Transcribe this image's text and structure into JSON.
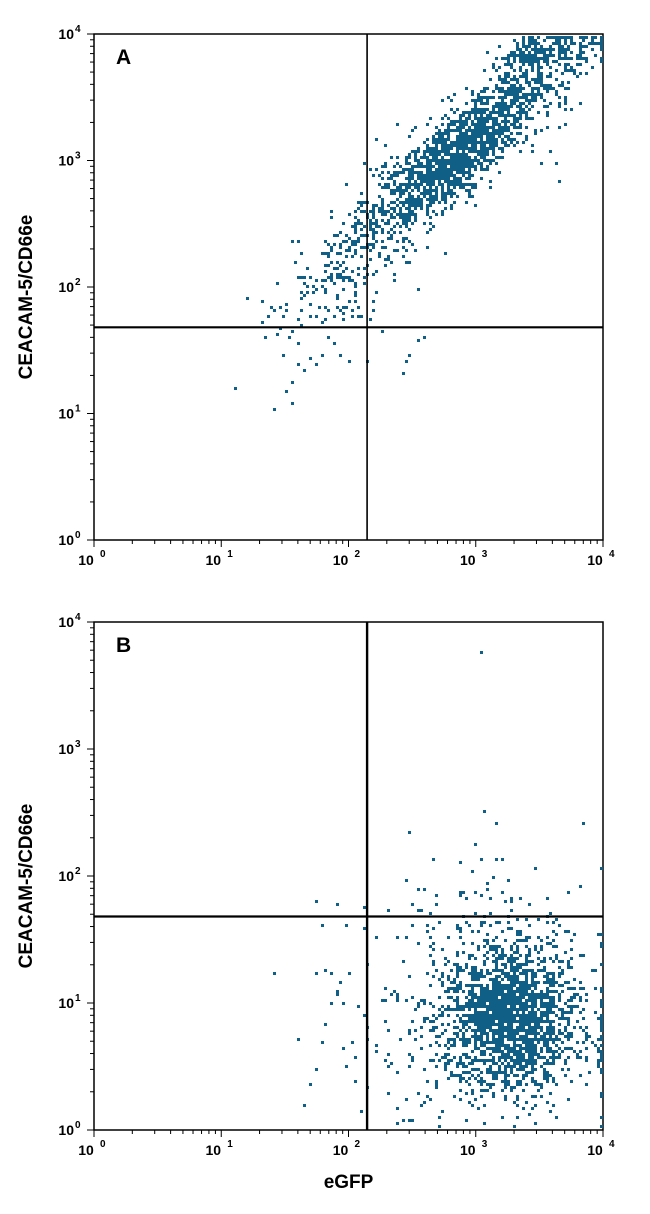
{
  "chart_data": [
    {
      "type": "scatter",
      "panel_label": "A",
      "xlabel": "",
      "ylabel": "CEACAM-5/CD66e",
      "xscale": "log",
      "yscale": "log",
      "xlim": [
        1,
        10000
      ],
      "ylim": [
        1,
        10000
      ],
      "x_ticks": [
        "10",
        "10",
        "10",
        "10",
        "10"
      ],
      "x_tick_exps": [
        "0",
        "1",
        "2",
        "3",
        "4"
      ],
      "y_ticks": [
        "10",
        "10",
        "10",
        "10",
        "10"
      ],
      "y_tick_exps": [
        "0",
        "1",
        "2",
        "3",
        "4"
      ],
      "quadrant_x": 140,
      "quadrant_y": 48,
      "point_color": "#0f5f86",
      "clusters": [
        {
          "center": [
            700,
            1200
          ],
          "spread_log": [
            0.42,
            0.38
          ],
          "correlation": 0.88,
          "count": 1700
        },
        {
          "center": [
            3500,
            7500
          ],
          "spread_log": [
            0.2,
            0.07
          ],
          "correlation": 0.3,
          "count": 220
        },
        {
          "center": [
            90,
            120
          ],
          "spread_log": [
            0.28,
            0.25
          ],
          "correlation": 0.5,
          "count": 140
        }
      ],
      "points": [
        [
          25,
          10.8
        ],
        [
          32,
          15
        ],
        [
          35,
          12.5
        ],
        [
          36,
          18
        ],
        [
          40,
          25
        ],
        [
          45,
          22
        ],
        [
          50,
          28
        ],
        [
          55,
          25
        ],
        [
          30,
          30
        ],
        [
          60,
          30
        ],
        [
          82,
          29
        ],
        [
          100,
          27
        ],
        [
          140,
          27
        ],
        [
          270,
          21
        ],
        [
          282,
          27
        ],
        [
          300,
          30
        ],
        [
          350,
          38
        ],
        [
          380,
          41
        ],
        [
          20,
          55
        ],
        [
          22,
          42
        ],
        [
          25,
          68
        ],
        [
          28,
          48
        ],
        [
          30,
          60
        ],
        [
          35,
          45
        ],
        [
          42,
          52
        ],
        [
          60,
          55
        ],
        [
          75,
          60
        ],
        [
          90,
          65
        ],
        [
          20,
          80
        ],
        [
          4500,
          700
        ],
        [
          4200,
          1000
        ],
        [
          5000,
          2000
        ]
      ]
    },
    {
      "type": "scatter",
      "panel_label": "B",
      "xlabel": "eGFP",
      "ylabel": "CEACAM-5/CD66e",
      "xscale": "log",
      "yscale": "log",
      "xlim": [
        1,
        10000
      ],
      "ylim": [
        1,
        10000
      ],
      "x_ticks": [
        "10",
        "10",
        "10",
        "10",
        "10"
      ],
      "x_tick_exps": [
        "0",
        "1",
        "2",
        "3",
        "4"
      ],
      "y_ticks": [
        "10",
        "10",
        "10",
        "10",
        "10"
      ],
      "y_tick_exps": [
        "0",
        "1",
        "2",
        "3",
        "4"
      ],
      "quadrant_x": 140,
      "quadrant_y": 48,
      "point_color": "#0f5f86",
      "clusters": [
        {
          "center": [
            1900,
            8
          ],
          "spread_log": [
            0.22,
            0.27
          ],
          "correlation": 0.0,
          "count": 1500
        },
        {
          "center": [
            1200,
            12
          ],
          "spread_log": [
            0.45,
            0.45
          ],
          "correlation": 0.0,
          "count": 450
        },
        {
          "center": [
            2000,
            5
          ],
          "spread_log": [
            0.5,
            0.3
          ],
          "correlation": 0.0,
          "count": 250
        }
      ],
      "points": [
        [
          1100,
          5800
        ],
        [
          1150,
          330
        ],
        [
          1450,
          260
        ],
        [
          950,
          180
        ],
        [
          1100,
          140
        ],
        [
          1600,
          140
        ],
        [
          900,
          110
        ],
        [
          1800,
          95
        ],
        [
          1200,
          90
        ],
        [
          750,
          75
        ],
        [
          480,
          72
        ],
        [
          1550,
          75
        ],
        [
          1300,
          68
        ],
        [
          56,
          64
        ],
        [
          78,
          62
        ],
        [
          130,
          58
        ],
        [
          60,
          42
        ],
        [
          95,
          42
        ],
        [
          130,
          40
        ],
        [
          55,
          18
        ],
        [
          26,
          17.5
        ],
        [
          100,
          18
        ],
        [
          85,
          15
        ],
        [
          80,
          12
        ],
        [
          70,
          10
        ],
        [
          65,
          7
        ],
        [
          60,
          5
        ],
        [
          55,
          3
        ],
        [
          50,
          2.4
        ],
        [
          45,
          1.6
        ],
        [
          90,
          4.5
        ],
        [
          95,
          3.2
        ],
        [
          110,
          2.5
        ],
        [
          120,
          1.4
        ],
        [
          130,
          8
        ],
        [
          300,
          1.2
        ],
        [
          200,
          2.0
        ],
        [
          240,
          1.5
        ],
        [
          500,
          1.3
        ]
      ]
    }
  ]
}
